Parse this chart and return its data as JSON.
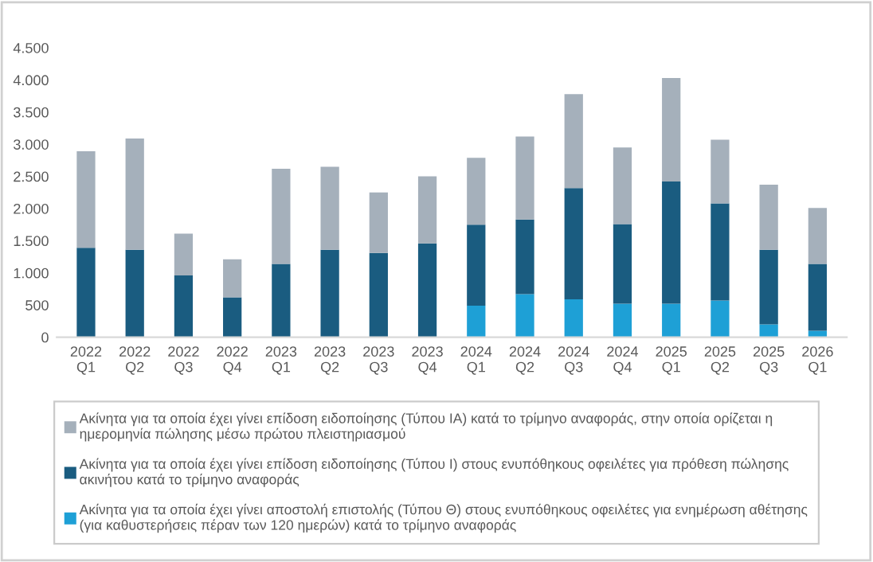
{
  "chart_data": {
    "type": "bar",
    "stacked": true,
    "categories": [
      "2022\nQ1",
      "2022\nQ2",
      "2022\nQ3",
      "2022\nQ4",
      "2023\nQ1",
      "2023\nQ2",
      "2023\nQ3",
      "2023\nQ4",
      "2024\nQ1",
      "2024\nQ2",
      "2024\nQ3",
      "2024\nQ4",
      "2025\nQ1",
      "2025\nQ2",
      "2025\nQ3",
      "2026\nQ1"
    ],
    "series": [
      {
        "name": "Ακίνητα για τα οποία έχει γίνει αποστολή επιστολής (Τύπου Θ) στους ενυπόθηκους οφειλέτες για ενημέρωση αθέτησης (για καθυστερήσεις πέραν των 120 ημερών) κατά το τρίμηνο αναφοράς",
        "color": "#1ea0d6",
        "values": [
          0,
          0,
          0,
          0,
          0,
          0,
          0,
          0,
          490,
          670,
          590,
          520,
          520,
          570,
          200,
          100
        ]
      },
      {
        "name": "Ακίνητα για τα οποία έχει γίνει επίδοση ειδοποίησης (Τύπου Ι) στους ενυπόθηκους οφειλέτες για πρόθεση πώλησης ακινήτου κατά το τρίμηνο αναφοράς",
        "color": "#1a5c80",
        "values": [
          1390,
          1360,
          960,
          620,
          1140,
          1360,
          1310,
          1460,
          1260,
          1160,
          1730,
          1240,
          1900,
          1510,
          1160,
          1040
        ]
      },
      {
        "name": "Ακίνητα για τα οποία έχει γίνει επίδοση ειδοποίησης (Τύπου ΙΑ) κατά το τρίμηνο αναφοράς, στην οποία ορίζεται η ημερομηνία πώλησης μέσω πρώτου πλειστηριασμού",
        "color": "#a5b0bb",
        "values": [
          1500,
          1730,
          650,
          590,
          1480,
          1290,
          940,
          1040,
          1040,
          1290,
          1460,
          1190,
          1610,
          990,
          1010,
          870
        ]
      }
    ],
    "ylim": [
      0,
      4500
    ],
    "yticks": [
      {
        "value": 0,
        "label": "0"
      },
      {
        "value": 500,
        "label": "500"
      },
      {
        "value": 1000,
        "label": "1.000"
      },
      {
        "value": 1500,
        "label": "1.500"
      },
      {
        "value": 2000,
        "label": "2.000"
      },
      {
        "value": 2500,
        "label": "2.500"
      },
      {
        "value": 3000,
        "label": "3.000"
      },
      {
        "value": 3500,
        "label": "3.500"
      },
      {
        "value": 4000,
        "label": "4.000"
      },
      {
        "value": 4500,
        "label": "4.500"
      }
    ],
    "grid": false,
    "legend": "bottom"
  }
}
